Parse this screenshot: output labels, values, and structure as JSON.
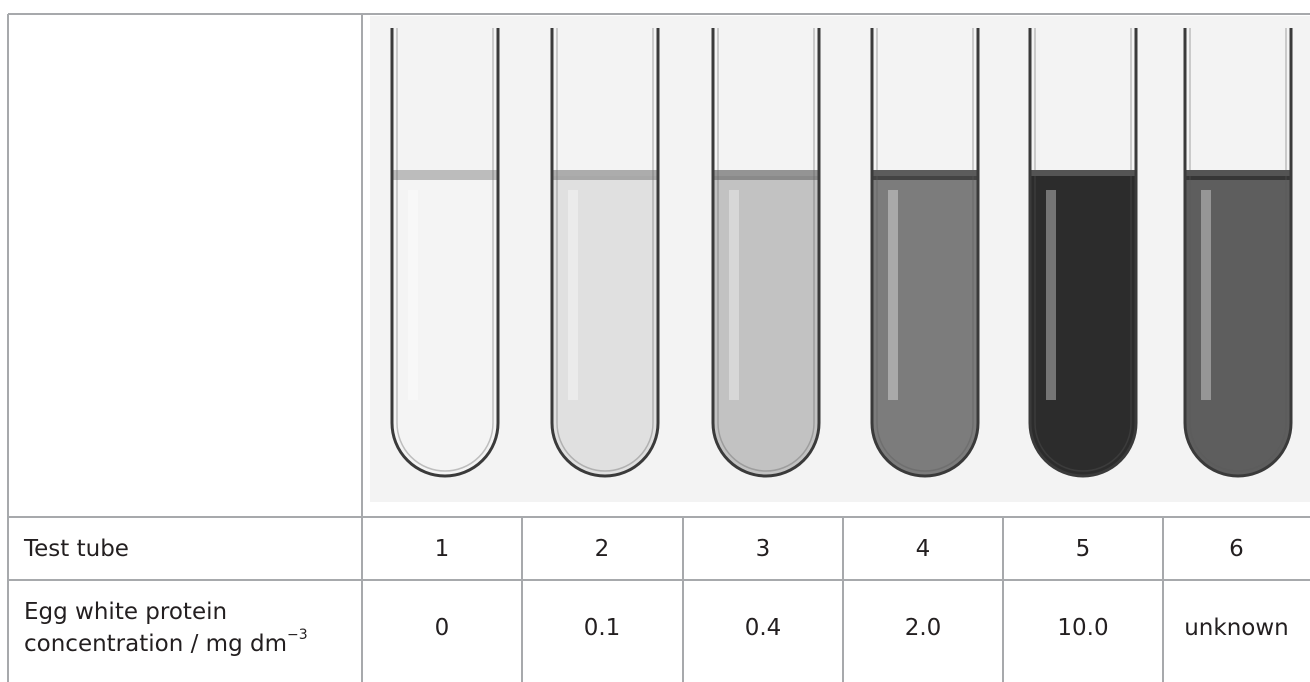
{
  "table": {
    "row_tube_label": "Test tube",
    "row_conc_label_line1": "Egg white protein",
    "row_conc_label_line2": "concentration / mg dm",
    "row_conc_label_exponent": "−3",
    "tubes": [
      {
        "number": "1",
        "concentration": "0",
        "liquid_level": 0.0
      },
      {
        "number": "2",
        "concentration": "0.1",
        "liquid_level": 0.1
      },
      {
        "number": "3",
        "concentration": "0.4",
        "liquid_level": 0.25
      },
      {
        "number": "4",
        "concentration": "2.0",
        "liquid_level": 0.6
      },
      {
        "number": "5",
        "concentration": "10.0",
        "liquid_level": 1.0
      },
      {
        "number": "6",
        "concentration": "unknown",
        "liquid_level": 0.75
      }
    ]
  },
  "colors": {
    "grid": "#a7a9ac",
    "text": "#231f20",
    "photo_bg": "#f3f3f3",
    "liquid_light": "#f4f4f4",
    "liquid_dark": "#2c2c2c"
  }
}
